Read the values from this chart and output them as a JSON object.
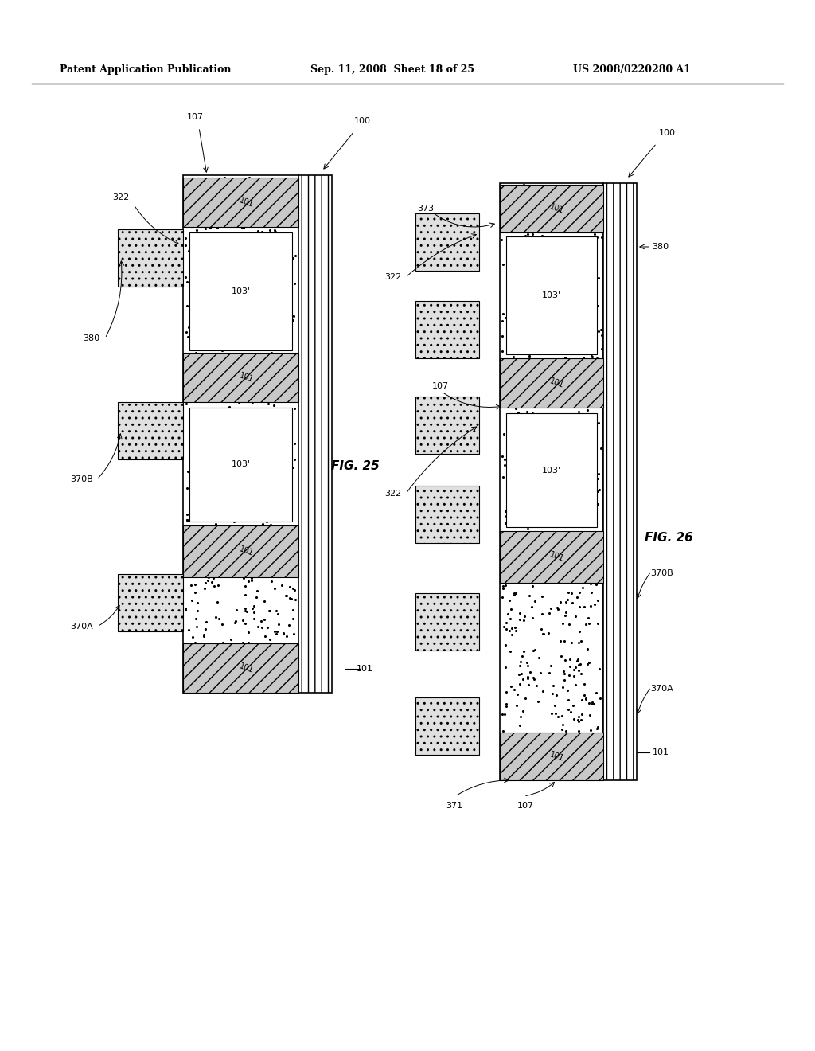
{
  "header_left": "Patent Application Publication",
  "header_mid": "Sep. 11, 2008  Sheet 18 of 25",
  "header_right": "US 2008/0220280 A1",
  "fig25_label": "FIG. 25",
  "fig26_label": "FIG. 26",
  "bg_color": "#ffffff"
}
